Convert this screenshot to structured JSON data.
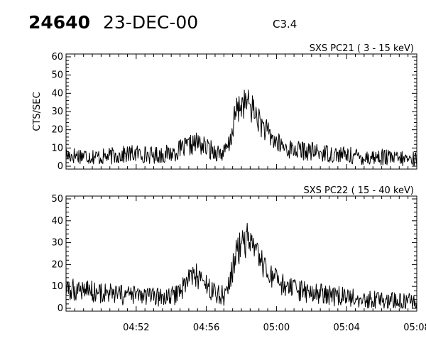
{
  "header": {
    "event_id": "24640",
    "date": "23-DEC-00",
    "flare_class": "C3.4"
  },
  "chart_data": [
    {
      "type": "line",
      "title": "SXS PC21  (  3 - 15 keV)",
      "xlabel": "",
      "ylabel": "CTS/SEC",
      "x_ticks": [
        "04:52",
        "04:56",
        "05:00",
        "05:04",
        "05:08"
      ],
      "xlim": [
        "04:48",
        "05:08"
      ],
      "ylim": [
        0,
        60
      ],
      "y_ticks": [
        0,
        10,
        20,
        30,
        40,
        50,
        60
      ],
      "grid": false,
      "series": [
        {
          "color": "#000000",
          "x": [
            "04:48",
            "04:49",
            "04:50",
            "04:51",
            "04:52",
            "04:53",
            "04:54",
            "04:55",
            "04:55:30",
            "04:56",
            "04:56:30",
            "04:57",
            "04:57:20",
            "04:57:40",
            "04:58",
            "04:58:20",
            "04:58:40",
            "04:59",
            "04:59:30",
            "05:00",
            "05:00:30",
            "05:01",
            "05:02",
            "05:03",
            "05:04",
            "05:05",
            "05:06",
            "05:07",
            "05:08"
          ],
          "values": [
            6,
            6,
            5,
            6,
            7,
            6,
            7,
            11,
            13,
            10,
            8,
            7,
            12,
            29,
            34,
            35,
            31,
            25,
            18,
            13,
            10,
            9,
            8,
            7,
            6,
            5,
            5,
            4,
            4
          ]
        }
      ]
    },
    {
      "type": "line",
      "title": "SXS PC22  ( 15 - 40 keV)",
      "xlabel": "",
      "ylabel": "",
      "x_ticks": [
        "04:52",
        "04:56",
        "05:00",
        "05:04",
        "05:08"
      ],
      "xlim": [
        "04:48",
        "05:08"
      ],
      "ylim": [
        0,
        50
      ],
      "y_ticks": [
        0,
        10,
        20,
        30,
        40,
        50
      ],
      "grid": false,
      "series": [
        {
          "color": "#000000",
          "x": [
            "04:48",
            "04:49",
            "04:50",
            "04:51",
            "04:52",
            "04:53",
            "04:54",
            "04:54:30",
            "04:55",
            "04:55:30",
            "04:56",
            "04:56:30",
            "04:57",
            "04:57:20",
            "04:57:40",
            "04:58",
            "04:58:20",
            "04:58:40",
            "04:59",
            "04:59:30",
            "05:00",
            "05:00:30",
            "05:01",
            "05:02",
            "05:03",
            "05:04",
            "05:05",
            "05:06",
            "05:07",
            "05:08"
          ],
          "values": [
            8,
            9,
            7,
            6,
            6,
            5,
            5,
            8,
            14,
            15,
            10,
            7,
            6,
            11,
            24,
            30,
            31,
            27,
            22,
            16,
            12,
            10,
            8,
            7,
            6,
            5,
            4,
            4,
            3,
            3
          ]
        }
      ]
    }
  ]
}
